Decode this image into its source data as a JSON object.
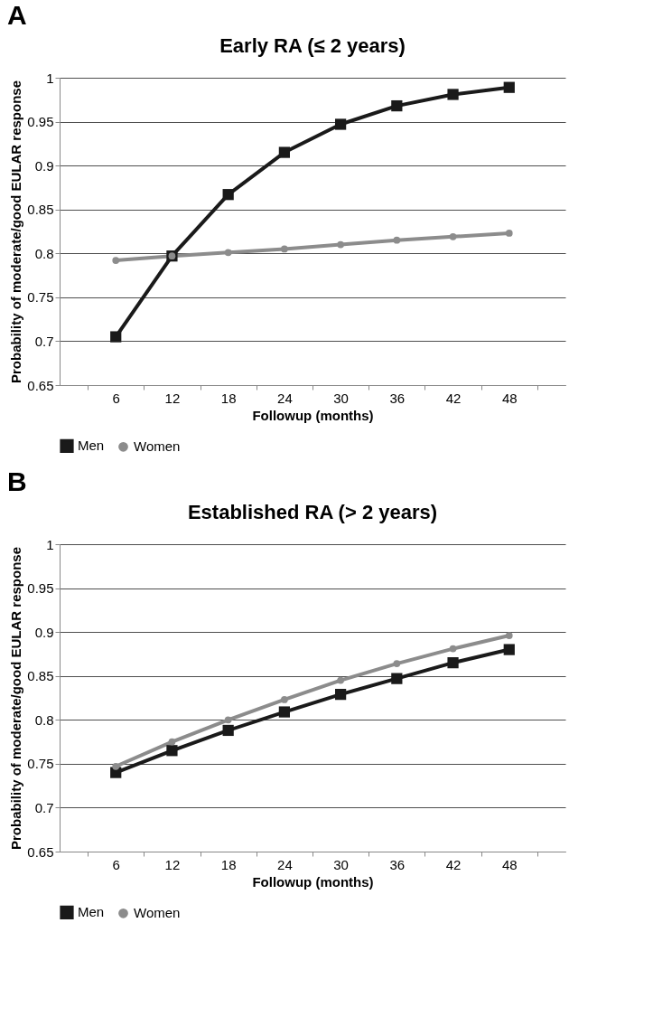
{
  "chart_data": [
    {
      "type": "line",
      "title": "Early RA (≤ 2 years)",
      "xlabel": "Followup (months)",
      "ylabel": "Probability of moderate/good EULAR response",
      "annotations": [
        "A"
      ],
      "categories": [
        "6",
        "12",
        "18",
        "24",
        "30",
        "36",
        "42",
        "48"
      ],
      "ylim": [
        0.65,
        1
      ],
      "yticks": [
        0.65,
        0.7,
        0.75,
        0.8,
        0.85,
        0.9,
        0.95,
        1
      ],
      "grid": "y",
      "legend": "bottom",
      "series": [
        {
          "name": "Men",
          "color": "#1a1a1a",
          "marker": "square",
          "values": [
            0.705,
            0.797,
            0.867,
            0.915,
            0.947,
            0.968,
            0.981,
            0.989
          ]
        },
        {
          "name": "Women",
          "color": "#8c8c8c",
          "marker": "circle",
          "values": [
            0.792,
            0.797,
            0.801,
            0.805,
            0.81,
            0.815,
            0.819,
            0.823
          ]
        }
      ]
    },
    {
      "type": "line",
      "title": "Established RA (> 2 years)",
      "xlabel": "Followup (months)",
      "ylabel": "Probability of moderate/good EULAR response",
      "annotations": [
        "B"
      ],
      "categories": [
        "6",
        "12",
        "18",
        "24",
        "30",
        "36",
        "42",
        "48"
      ],
      "ylim": [
        0.65,
        1
      ],
      "yticks": [
        0.65,
        0.7,
        0.75,
        0.8,
        0.85,
        0.9,
        0.95,
        1
      ],
      "grid": "y",
      "legend": "bottom",
      "series": [
        {
          "name": "Men",
          "color": "#1a1a1a",
          "marker": "square",
          "values": [
            0.74,
            0.765,
            0.788,
            0.809,
            0.829,
            0.847,
            0.865,
            0.88
          ]
        },
        {
          "name": "Women",
          "color": "#8c8c8c",
          "marker": "circle",
          "values": [
            0.747,
            0.775,
            0.8,
            0.823,
            0.845,
            0.864,
            0.881,
            0.896
          ]
        }
      ]
    }
  ]
}
